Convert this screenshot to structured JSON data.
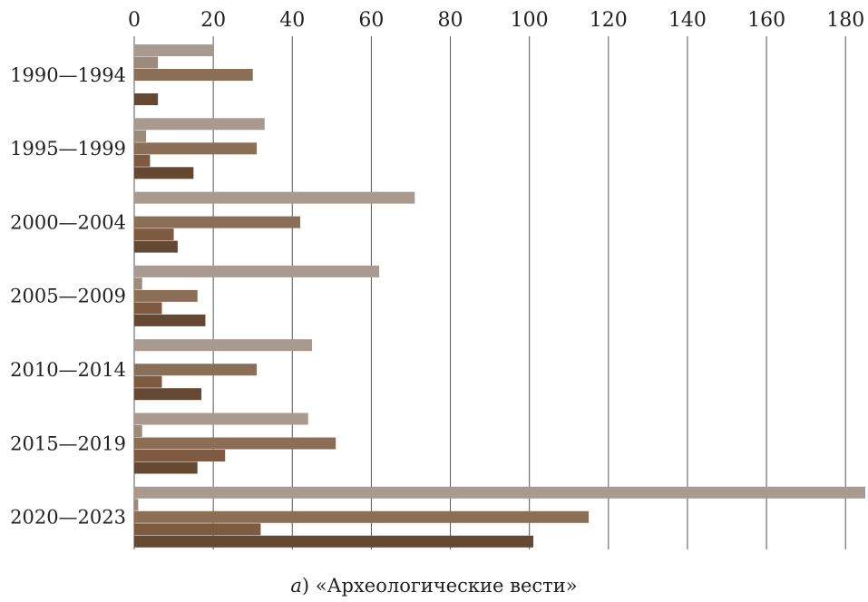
{
  "chart_data": {
    "type": "bar",
    "orientation": "horizontal",
    "categories": [
      "1990—1994",
      "1995—1999",
      "2000—2004",
      "2005—2009",
      "2010—2014",
      "2015—2019",
      "2020—2023"
    ],
    "series": [
      {
        "color": "#a89a8e",
        "values": [
          20,
          33,
          71,
          62,
          45,
          44,
          185
        ]
      },
      {
        "color": "#9c8a7a",
        "values": [
          6,
          3,
          0,
          2,
          0,
          2,
          1
        ]
      },
      {
        "color": "#8a6e55",
        "values": [
          30,
          31,
          42,
          16,
          31,
          51,
          115
        ]
      },
      {
        "color": "#7e5a40",
        "values": [
          0,
          4,
          10,
          7,
          7,
          23,
          32
        ]
      },
      {
        "color": "#654832",
        "values": [
          6,
          15,
          11,
          18,
          17,
          16,
          101
        ]
      }
    ],
    "xlim": [
      0,
      185
    ],
    "x_ticks": [
      0,
      20,
      40,
      60,
      80,
      100,
      120,
      140,
      160,
      180
    ],
    "x_axis_position": "top",
    "grid": true,
    "caption_letter": "а",
    "caption_text": ") «Археологические вести»"
  }
}
